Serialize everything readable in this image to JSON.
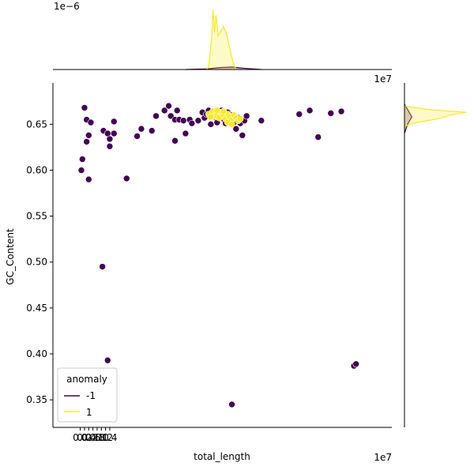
{
  "chart_data": {
    "type": "scatter",
    "title": "",
    "xlabel": "total_length",
    "ylabel": "GC_Content",
    "x_offset_label": "1e7",
    "top_margin_offset_label": "1e−6",
    "xlim": [
      -1.3,
      14.8
    ],
    "ylim": [
      0.32,
      0.695
    ],
    "x_ticks": [
      0.0,
      0.2,
      0.4,
      0.6,
      0.8,
      1.0,
      1.2,
      1.4
    ],
    "x_tick_labels": [
      "0.0",
      "0.2",
      "0.4",
      "0.6",
      "0.8",
      "1.0",
      "1.2",
      "1.4"
    ],
    "y_ticks": [
      0.35,
      0.4,
      0.45,
      0.5,
      0.55,
      0.6,
      0.65
    ],
    "y_tick_labels": [
      "0.35",
      "0.40",
      "0.45",
      "0.50",
      "0.55",
      "0.60",
      "0.65"
    ],
    "grid": false,
    "legend": {
      "title": "anomaly",
      "placement": "lower-left",
      "entries": [
        {
          "label": "-1",
          "color": "#440154"
        },
        {
          "label": "1",
          "color": "#fde725"
        }
      ]
    },
    "series": [
      {
        "name": "-1",
        "color": "#440154",
        "points": [
          [
            0.2,
            0.668
          ],
          [
            0.3,
            0.655
          ],
          [
            0.5,
            0.652
          ],
          [
            0.1,
            0.612
          ],
          [
            0.05,
            0.6
          ],
          [
            0.4,
            0.59
          ],
          [
            0.4,
            0.638
          ],
          [
            0.3,
            0.631
          ],
          [
            1.1,
            0.643
          ],
          [
            1.3,
            0.64
          ],
          [
            1.4,
            0.634
          ],
          [
            1.6,
            0.64
          ],
          [
            1.6,
            0.653
          ],
          [
            1.4,
            0.626
          ],
          [
            2.2,
            0.591
          ],
          [
            1.05,
            0.495
          ],
          [
            1.3,
            0.393
          ],
          [
            2.7,
            0.637
          ],
          [
            2.9,
            0.645
          ],
          [
            3.4,
            0.643
          ],
          [
            3.6,
            0.659
          ],
          [
            4.0,
            0.665
          ],
          [
            4.2,
            0.67
          ],
          [
            4.6,
            0.665
          ],
          [
            4.3,
            0.659
          ],
          [
            4.5,
            0.655
          ],
          [
            4.7,
            0.655
          ],
          [
            4.9,
            0.654
          ],
          [
            5.0,
            0.64
          ],
          [
            5.2,
            0.655
          ],
          [
            5.3,
            0.651
          ],
          [
            4.5,
            0.632
          ],
          [
            5.6,
            0.654
          ],
          [
            5.9,
            0.657
          ],
          [
            5.8,
            0.663
          ],
          [
            6.0,
            0.661
          ],
          [
            6.1,
            0.665
          ],
          [
            6.2,
            0.66
          ],
          [
            6.3,
            0.664
          ],
          [
            6.4,
            0.658
          ],
          [
            6.5,
            0.652
          ],
          [
            6.6,
            0.661
          ],
          [
            6.7,
            0.665
          ],
          [
            6.8,
            0.656
          ],
          [
            6.9,
            0.651
          ],
          [
            7.0,
            0.663
          ],
          [
            7.1,
            0.654
          ],
          [
            7.2,
            0.66
          ],
          [
            7.3,
            0.652
          ],
          [
            7.4,
            0.645
          ],
          [
            7.5,
            0.657
          ],
          [
            7.6,
            0.651
          ],
          [
            7.7,
            0.638
          ],
          [
            7.8,
            0.654
          ],
          [
            7.9,
            0.659
          ],
          [
            6.2,
            0.65
          ],
          [
            6.5,
            0.658
          ],
          [
            6.9,
            0.66
          ],
          [
            7.2,
            0.655
          ],
          [
            8.6,
            0.654
          ],
          [
            10.4,
            0.661
          ],
          [
            10.9,
            0.665
          ],
          [
            11.3,
            0.636
          ],
          [
            11.9,
            0.662
          ],
          [
            12.4,
            0.664
          ],
          [
            13.0,
            0.387
          ],
          [
            13.1,
            0.389
          ],
          [
            7.2,
            0.345
          ]
        ]
      },
      {
        "name": "1",
        "color": "#fde725",
        "points": [
          [
            6.1,
            0.661
          ],
          [
            6.3,
            0.664
          ],
          [
            6.4,
            0.659
          ],
          [
            6.5,
            0.662
          ],
          [
            6.6,
            0.657
          ],
          [
            6.7,
            0.663
          ],
          [
            6.8,
            0.66
          ],
          [
            6.9,
            0.656
          ],
          [
            7.0,
            0.661
          ],
          [
            7.1,
            0.658
          ],
          [
            7.2,
            0.655
          ],
          [
            7.3,
            0.66
          ],
          [
            7.4,
            0.657
          ],
          [
            7.5,
            0.654
          ],
          [
            6.5,
            0.665
          ],
          [
            6.8,
            0.664
          ],
          [
            7.0,
            0.652
          ],
          [
            7.6,
            0.656
          ],
          [
            6.2,
            0.658
          ],
          [
            7.2,
            0.65
          ]
        ]
      }
    ],
    "marginal_x": {
      "type": "kde",
      "series": [
        {
          "name": "-1",
          "color": "#440154",
          "points": [
            [
              5.0,
              0.0
            ],
            [
              6.0,
              0.01
            ],
            [
              6.6,
              0.03
            ],
            [
              7.2,
              0.04
            ],
            [
              7.8,
              0.02
            ],
            [
              8.6,
              0.0
            ]
          ]
        },
        {
          "name": "1",
          "color": "#fde725",
          "points": [
            [
              6.0,
              0.0
            ],
            [
              6.1,
              0.05
            ],
            [
              6.25,
              0.55
            ],
            [
              6.3,
              0.97
            ],
            [
              6.38,
              0.6
            ],
            [
              6.45,
              0.88
            ],
            [
              6.55,
              0.55
            ],
            [
              6.65,
              0.6
            ],
            [
              6.8,
              0.7
            ],
            [
              6.95,
              0.58
            ],
            [
              7.1,
              0.35
            ],
            [
              7.25,
              0.12
            ],
            [
              7.4,
              0.0
            ]
          ]
        }
      ]
    },
    "marginal_y": {
      "type": "kde",
      "series": [
        {
          "name": "-1",
          "color": "#440154",
          "points": [
            [
              0.64,
              0.0
            ],
            [
              0.65,
              0.05
            ],
            [
              0.658,
              0.12
            ],
            [
              0.665,
              0.06
            ],
            [
              0.672,
              0.0
            ]
          ]
        },
        {
          "name": "1",
          "color": "#fde725",
          "points": [
            [
              0.648,
              0.0
            ],
            [
              0.652,
              0.2
            ],
            [
              0.656,
              0.55
            ],
            [
              0.66,
              0.75
            ],
            [
              0.663,
              1.0
            ],
            [
              0.666,
              0.4
            ],
            [
              0.67,
              0.0
            ]
          ]
        }
      ]
    }
  }
}
